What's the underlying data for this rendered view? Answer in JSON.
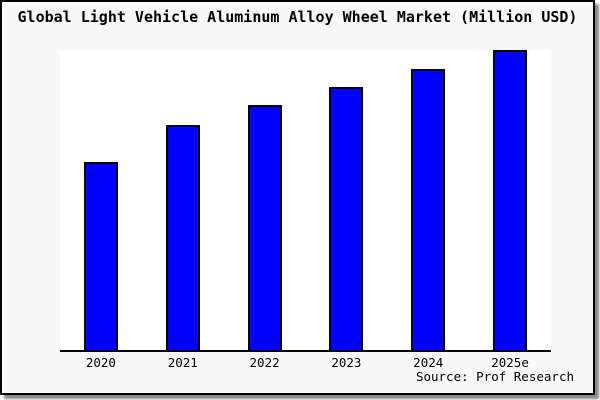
{
  "title": "Global Light Vehicle Aluminum Alloy Wheel Market (Million USD)",
  "source_credit": "Source: Prof Research",
  "chart_data": {
    "type": "bar",
    "title": "Global Light Vehicle Aluminum Alloy Wheel Market (Million USD)",
    "categories": [
      "2020",
      "2021",
      "2022",
      "2023",
      "2024",
      "2025e"
    ],
    "values": [
      62.8,
      75.1,
      81.6,
      87.8,
      93.8,
      100
    ],
    "xlabel": "",
    "ylabel": "",
    "ylim": [
      0,
      100
    ],
    "grid": false,
    "legend_position": "none",
    "bar_color": "#0000ff",
    "bar_edge_color": "#000000"
  },
  "colors": {
    "bar_fill": "#0000ff",
    "bar_edge": "#000000",
    "frame_background": "#f9f9f9",
    "plot_background": "#ffffff",
    "axis_line": "#000000",
    "frame_border": "#000000",
    "text": "#000000",
    "shadow": "#747474"
  }
}
